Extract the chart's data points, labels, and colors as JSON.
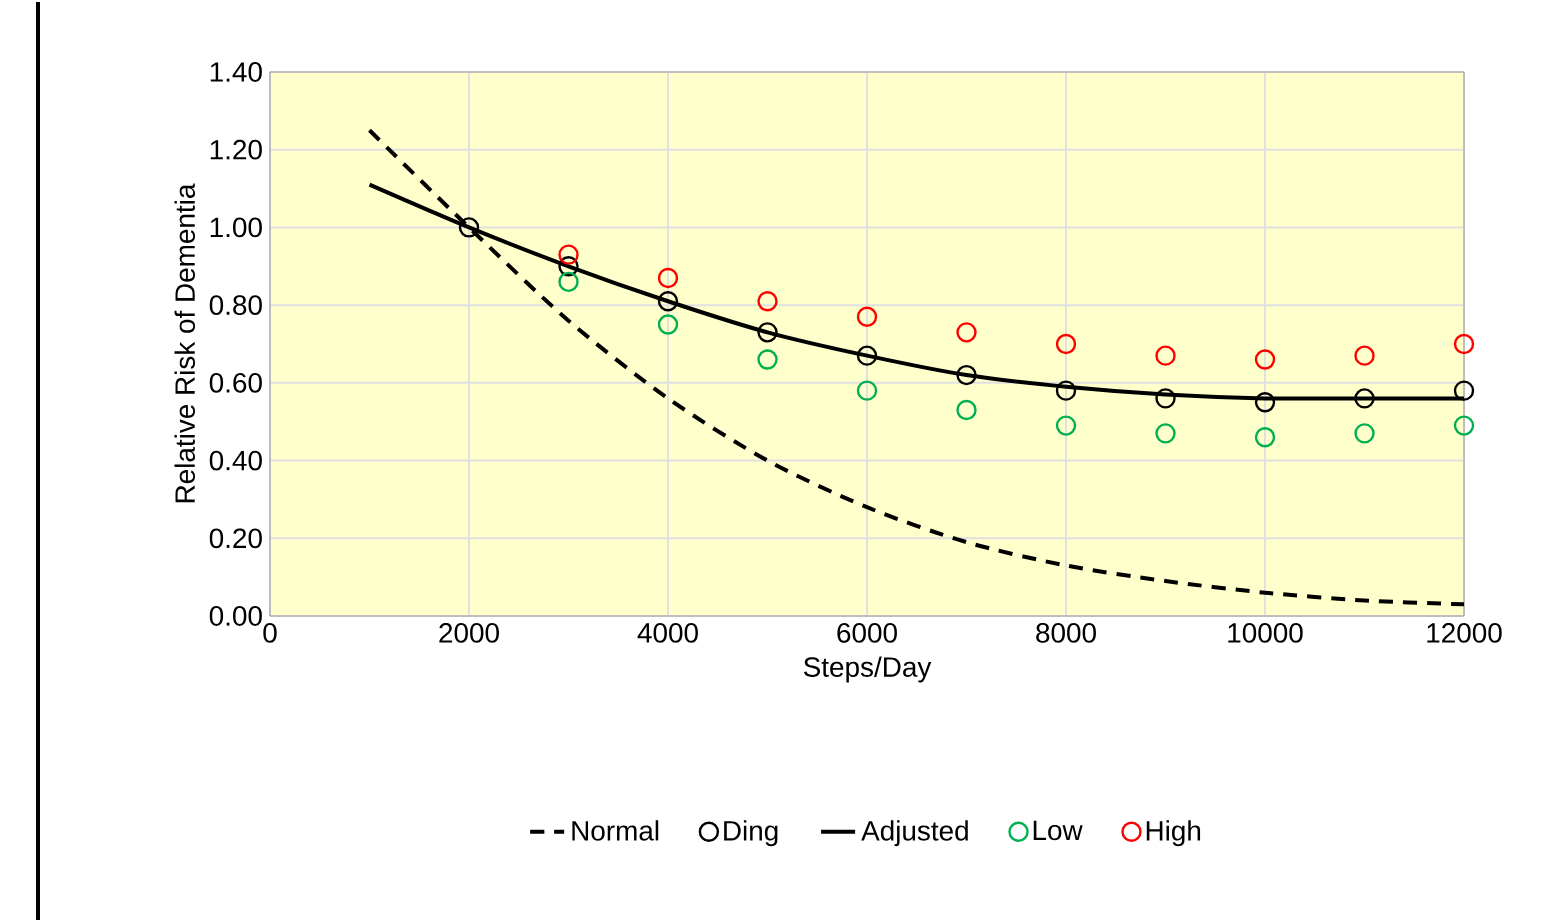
{
  "chart_data": {
    "type": "line",
    "xlabel": "Steps/Day",
    "ylabel": "Relative Risk of Dementia",
    "xlim": [
      0,
      12000
    ],
    "ylim": [
      0,
      1.4
    ],
    "xticks": [
      0,
      2000,
      4000,
      6000,
      8000,
      10000,
      12000
    ],
    "yticks": [
      {
        "value": 0,
        "label": "0.00"
      },
      {
        "value": 0.2,
        "label": "0.20"
      },
      {
        "value": 0.4,
        "label": "0.40"
      },
      {
        "value": 0.6,
        "label": "0.60"
      },
      {
        "value": 0.8,
        "label": "0.80"
      },
      {
        "value": 1.0,
        "label": "1.00"
      },
      {
        "value": 1.2,
        "label": "1.20"
      },
      {
        "value": 1.4,
        "label": "1.40"
      }
    ],
    "grid": true,
    "legend": "bottom",
    "series": [
      {
        "name": "Normal",
        "line_style": "dashed",
        "marker": "none",
        "color": "#000000",
        "x": [
          1000,
          2000,
          3000,
          4000,
          5000,
          6000,
          7000,
          8000,
          9000,
          10000,
          11000,
          12000
        ],
        "values": [
          1.25,
          1.0,
          0.76,
          0.56,
          0.4,
          0.28,
          0.19,
          0.13,
          0.09,
          0.06,
          0.04,
          0.03
        ]
      },
      {
        "name": "Ding",
        "type": "scatter",
        "marker": "circle",
        "color": "#000000",
        "x": [
          2000,
          3000,
          4000,
          5000,
          6000,
          7000,
          8000,
          9000,
          10000,
          11000,
          12000
        ],
        "values": [
          1.0,
          0.9,
          0.81,
          0.73,
          0.67,
          0.62,
          0.58,
          0.56,
          0.55,
          0.56,
          0.58
        ]
      },
      {
        "name": "Adjusted",
        "line_style": "solid",
        "marker": "none",
        "color": "#000000",
        "x": [
          1000,
          2000,
          3000,
          4000,
          5000,
          6000,
          7000,
          8000,
          9000,
          10000,
          11000,
          12000
        ],
        "values": [
          1.11,
          1.0,
          0.9,
          0.81,
          0.73,
          0.67,
          0.62,
          0.59,
          0.57,
          0.56,
          0.56,
          0.56
        ]
      },
      {
        "name": "Low",
        "type": "scatter",
        "marker": "circle",
        "color": "#00b050",
        "x": [
          3000,
          4000,
          5000,
          6000,
          7000,
          8000,
          9000,
          10000,
          11000,
          12000
        ],
        "values": [
          0.86,
          0.75,
          0.66,
          0.58,
          0.53,
          0.49,
          0.47,
          0.46,
          0.47,
          0.49
        ]
      },
      {
        "name": "High",
        "type": "scatter",
        "marker": "circle",
        "color": "#ff0000",
        "x": [
          3000,
          4000,
          5000,
          6000,
          7000,
          8000,
          9000,
          10000,
          11000,
          12000
        ],
        "values": [
          0.93,
          0.87,
          0.81,
          0.77,
          0.73,
          0.7,
          0.67,
          0.66,
          0.67,
          0.7
        ]
      }
    ]
  }
}
